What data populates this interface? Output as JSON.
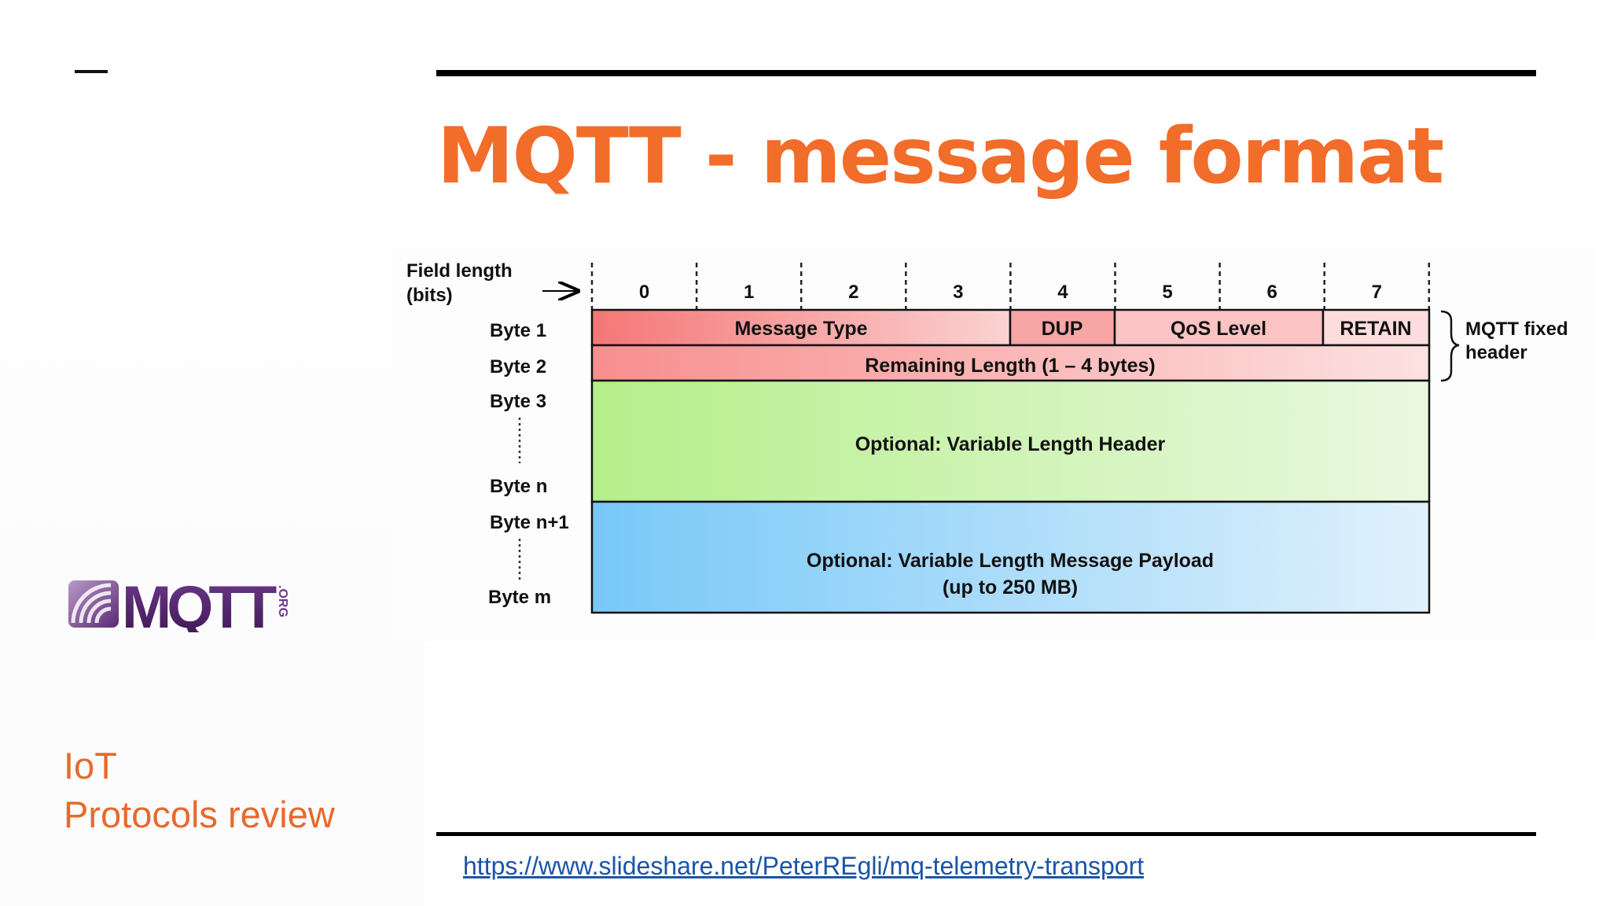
{
  "slide": {
    "title": "MQTT - message format",
    "footer_line1": "IoT",
    "footer_line2": "Protocols review",
    "source_link": "https://www.slideshare.net/PeterREgli/mq-telemetry-transport",
    "logo_text": "MQTT",
    "logo_suffix": ".ORG"
  },
  "diagram": {
    "field_length_label_line1": "Field length",
    "field_length_label_line2": "(bits)",
    "bit_numbers": [
      "0",
      "1",
      "2",
      "3",
      "4",
      "5",
      "6",
      "7"
    ],
    "byte_labels": {
      "byte1": "Byte 1",
      "byte2": "Byte 2",
      "byte3": "Byte 3",
      "byten": "Byte n",
      "byten1": "Byte n+1",
      "bytem": "Byte m"
    },
    "fields": {
      "message_type": "Message Type",
      "dup": "DUP",
      "qos_level": "QoS Level",
      "retain": "RETAIN",
      "remaining_length": "Remaining Length (1 – 4 bytes)",
      "variable_header": "Optional: Variable Length Header",
      "payload": "Optional: Variable Length Message Payload",
      "payload_size": "(up to 250 MB)"
    },
    "brace_label_line1": "MQTT fixed",
    "brace_label_line2": "header"
  },
  "colors": {
    "accent": "#f26c2a",
    "link": "#1a55a8",
    "fixed_header": "#f47a7a",
    "variable_header": "#b9ee8f",
    "payload": "#7fcbf6"
  }
}
